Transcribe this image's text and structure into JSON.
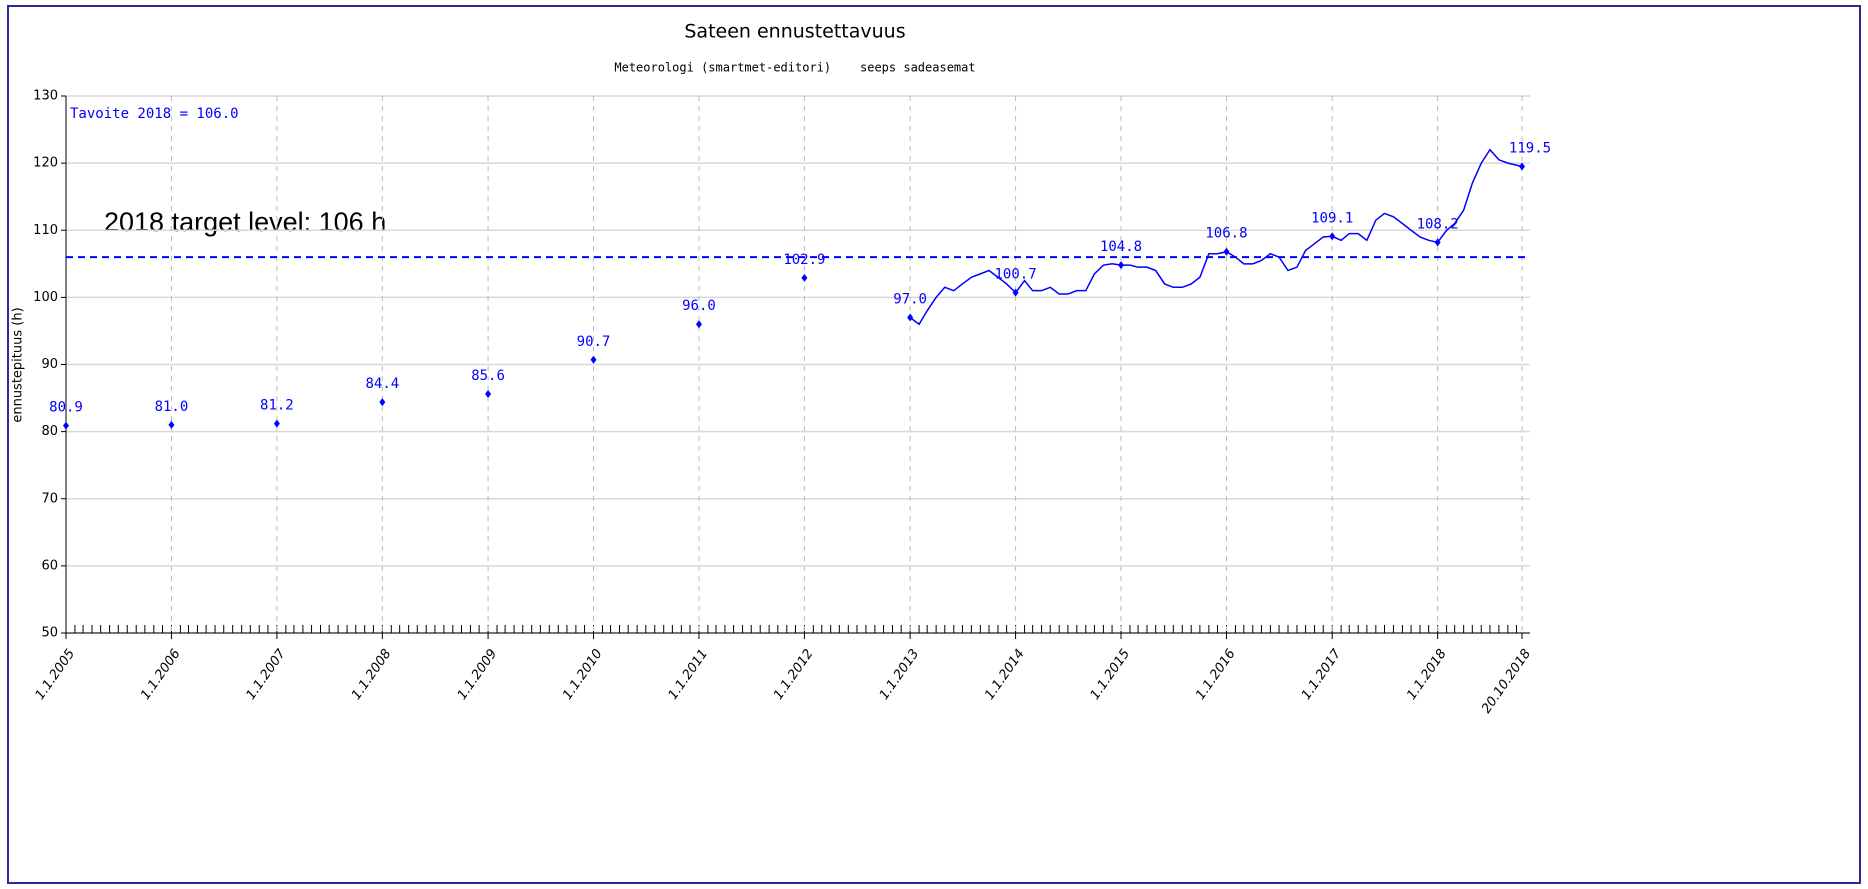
{
  "chart_data": {
    "type": "line",
    "title": "Sateen ennustettavuus",
    "subtitle": "Meteorologi (smartmet-editori)    seeps sadeasemat",
    "ylabel": "ennustepituus (h)",
    "ylim": [
      50,
      130
    ],
    "yticks": [
      50,
      60,
      70,
      80,
      90,
      100,
      110,
      120,
      130
    ],
    "xlim": [
      "1.1.2005",
      "20.10.2018"
    ],
    "xticks": [
      "1.1.2005",
      "1.1.2006",
      "1.1.2007",
      "1.1.2008",
      "1.1.2009",
      "1.1.2010",
      "1.1.2011",
      "1.1.2012",
      "1.1.2013",
      "1.1.2014",
      "1.1.2015",
      "1.1.2016",
      "1.1.2017",
      "1.1.2018",
      "20.10.2018"
    ],
    "grid": true,
    "color": "#0000ff",
    "target": {
      "value": 106,
      "label": "Tavoite 2018 = 106.0"
    },
    "annotation": "2018 target level: 106 h",
    "series": [
      {
        "color": "#0000ff",
        "x": [
          "1.1.2005",
          "1.1.2006",
          "1.1.2007",
          "1.1.2008",
          "1.1.2009",
          "1.1.2010",
          "1.1.2011",
          "1.1.2012",
          "1.1.2013",
          "1.1.2014",
          "1.1.2015",
          "1.1.2016",
          "1.1.2017",
          "1.1.2018",
          "20.10.2018"
        ],
        "values": [
          80.9,
          81.0,
          81.2,
          84.4,
          85.6,
          90.7,
          96.0,
          102.9,
          97.0,
          100.7,
          104.8,
          106.8,
          109.1,
          108.2,
          119.5
        ],
        "value_labels": [
          "80.9",
          "81.0",
          "81.2",
          "84.4",
          "85.6",
          "90.7",
          "96.0",
          "102.9",
          "97.0",
          "100.7",
          "104.8",
          "106.8",
          "109.1",
          "108.2",
          "119.5"
        ]
      },
      {
        "color": "#0000ff",
        "x": [
          "1.1.2013",
          "1.2.2013",
          "1.3.2013",
          "1.4.2013",
          "1.5.2013",
          "1.6.2013",
          "1.7.2013",
          "1.8.2013",
          "1.9.2013",
          "1.10.2013",
          "1.11.2013",
          "1.12.2013",
          "1.1.2014",
          "1.2.2014",
          "1.3.2014",
          "1.4.2014",
          "1.5.2014",
          "1.6.2014",
          "1.7.2014",
          "1.8.2014",
          "1.9.2014",
          "1.10.2014",
          "1.11.2014",
          "1.12.2014",
          "1.1.2015",
          "1.2.2015",
          "1.3.2015",
          "1.4.2015",
          "1.5.2015",
          "1.6.2015",
          "1.7.2015",
          "1.8.2015",
          "1.9.2015",
          "1.10.2015",
          "1.11.2015",
          "1.12.2015",
          "1.1.2016",
          "1.2.2016",
          "1.3.2016",
          "1.4.2016",
          "1.5.2016",
          "1.6.2016",
          "1.7.2016",
          "1.8.2016",
          "1.9.2016",
          "1.10.2016",
          "1.11.2016",
          "1.12.2016",
          "1.1.2017",
          "1.2.2017",
          "1.3.2017",
          "1.4.2017",
          "1.5.2017",
          "1.6.2017",
          "1.7.2017",
          "1.8.2017",
          "1.9.2017",
          "1.10.2017",
          "1.11.2017",
          "1.12.2017",
          "1.1.2018",
          "1.2.2018",
          "1.3.2018",
          "1.4.2018",
          "1.5.2018",
          "1.6.2018",
          "1.7.2018",
          "1.8.2018",
          "1.9.2018",
          "20.10.2018"
        ],
        "values": [
          97,
          96,
          98,
          100,
          101.5,
          101,
          102,
          103,
          103.5,
          104,
          103,
          102,
          100.7,
          102.5,
          101,
          101,
          101.5,
          100.5,
          100.5,
          101,
          101,
          103.5,
          104.8,
          105,
          104.8,
          104.8,
          104.5,
          104.5,
          104,
          102,
          101.5,
          101.5,
          102,
          103,
          106.5,
          106.5,
          106.8,
          106,
          105,
          105,
          105.5,
          106.5,
          106,
          104,
          104.5,
          107,
          108,
          109,
          109.1,
          108.5,
          109.5,
          109.5,
          108.5,
          111.5,
          112.5,
          112,
          111,
          110,
          109,
          108.5,
          108.2,
          110,
          111,
          113,
          117,
          120,
          122,
          120.5,
          120,
          119.5
        ]
      }
    ]
  }
}
